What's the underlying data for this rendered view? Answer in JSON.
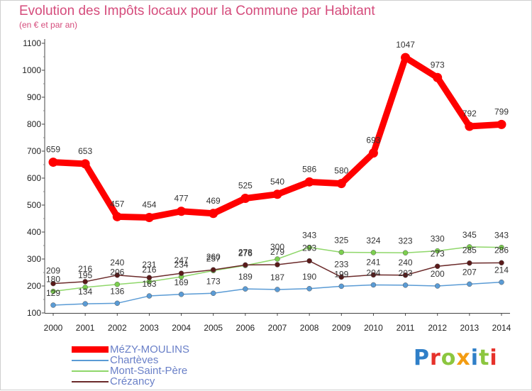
{
  "header": {
    "title": "Evolution des Impôts locaux pour la Commune par Habitant",
    "subtitle": "(en € et par an)"
  },
  "logo": {
    "text": "Proxiti",
    "letters": [
      {
        "ch": "P",
        "color": "#2f7fc8"
      },
      {
        "ch": "r",
        "color": "#e6322b"
      },
      {
        "ch": "o",
        "color": "#8cc63f"
      },
      {
        "ch": "x",
        "color": "#f39c12"
      },
      {
        "ch": "i",
        "color": "#2f7fc8"
      },
      {
        "ch": "t",
        "color": "#8cc63f"
      },
      {
        "ch": "i",
        "color": "#e6322b"
      }
    ]
  },
  "chart_data": {
    "type": "line",
    "title": "Evolution des Impôts locaux pour la Commune par Habitant",
    "subtitle": "(en € et par an)",
    "xlabel": "",
    "ylabel": "",
    "ylim": [
      100,
      1100
    ],
    "yticks": [
      100,
      200,
      300,
      400,
      500,
      600,
      700,
      800,
      900,
      1000,
      1100
    ],
    "grid": false,
    "legend_position": "bottom-left",
    "categories": [
      "2000",
      "2001",
      "2002",
      "2003",
      "2004",
      "2005",
      "2006",
      "2007",
      "2008",
      "2009",
      "2010",
      "2011",
      "2012",
      "2013",
      "2014"
    ],
    "series": [
      {
        "name": "MéZY-MOULINS",
        "color": "#ff0000",
        "marker_color": "#ff0000",
        "thick": true,
        "values": [
          659,
          653,
          457,
          454,
          477,
          469,
          525,
          540,
          586,
          580,
          693,
          1047,
          973,
          792,
          799
        ]
      },
      {
        "name": "Chartèves",
        "color": "#5a9bd5",
        "marker_color": "#5a9bd5",
        "thick": false,
        "values": [
          129,
          134,
          136,
          163,
          169,
          173,
          189,
          187,
          190,
          199,
          204,
          203,
          200,
          207,
          214
        ]
      },
      {
        "name": "Mont-Saint-Père",
        "color": "#8fd76a",
        "marker_color": "#7ccf4f",
        "thick": false,
        "values": [
          180,
          195,
          206,
          216,
          234,
          257,
          276,
          300,
          343,
          325,
          324,
          323,
          330,
          345,
          343
        ]
      },
      {
        "name": "Crézancy",
        "color": "#6b2a2a",
        "marker_color": "#5a1a1a",
        "thick": false,
        "values": [
          209,
          216,
          240,
          231,
          247,
          260,
          278,
          279,
          293,
          233,
          241,
          240,
          273,
          285,
          286
        ]
      }
    ]
  }
}
